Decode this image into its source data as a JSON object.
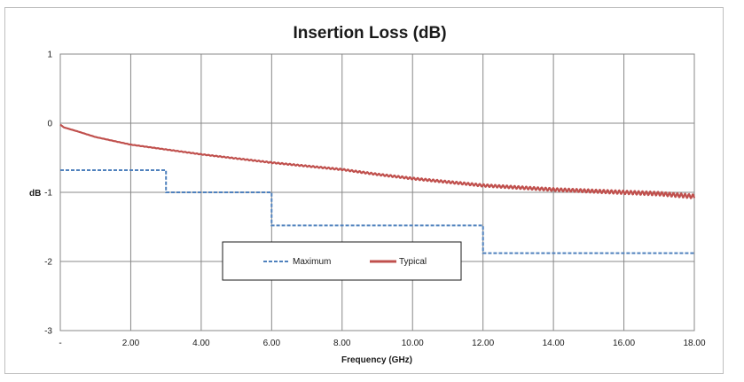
{
  "chart_data": {
    "type": "line",
    "title": "Insertion Loss (dB)",
    "xlabel": "Frequency (GHz)",
    "ylabel": "dB",
    "xlim": [
      0,
      18
    ],
    "ylim": [
      -3,
      1
    ],
    "x_ticks": [
      {
        "value": 0,
        "label": "-"
      },
      {
        "value": 2,
        "label": "2.00"
      },
      {
        "value": 4,
        "label": "4.00"
      },
      {
        "value": 6,
        "label": "6.00"
      },
      {
        "value": 8,
        "label": "8.00"
      },
      {
        "value": 10,
        "label": "10.00"
      },
      {
        "value": 12,
        "label": "12.00"
      },
      {
        "value": 14,
        "label": "14.00"
      },
      {
        "value": 16,
        "label": "16.00"
      },
      {
        "value": 18,
        "label": "18.00"
      }
    ],
    "y_ticks": [
      {
        "value": 1,
        "label": "1"
      },
      {
        "value": 0,
        "label": "0"
      },
      {
        "value": -1,
        "label": "-1"
      },
      {
        "value": -2,
        "label": "-2"
      },
      {
        "value": -3,
        "label": "-3"
      }
    ],
    "grid": true,
    "legend_position": "bottom-center",
    "series": [
      {
        "name": "Maximum",
        "color": "#4f81bd",
        "style": "dashed",
        "step": true,
        "x": [
          0,
          3,
          3,
          6,
          6,
          12,
          12,
          18
        ],
        "y": [
          -0.68,
          -0.68,
          -1.0,
          -1.0,
          -1.48,
          -1.48,
          -1.88,
          -1.88
        ]
      },
      {
        "name": "Typical",
        "color": "#c0504d",
        "style": "solid",
        "x": [
          0,
          0.1,
          0.5,
          1,
          2,
          3,
          4,
          5,
          6,
          7,
          8,
          9,
          10,
          11,
          12,
          13,
          14,
          15,
          16,
          17,
          18
        ],
        "y": [
          -0.02,
          -0.06,
          -0.12,
          -0.2,
          -0.31,
          -0.38,
          -0.45,
          -0.51,
          -0.57,
          -0.62,
          -0.67,
          -0.74,
          -0.8,
          -0.85,
          -0.9,
          -0.93,
          -0.96,
          -0.98,
          -1.0,
          -1.02,
          -1.06
        ]
      }
    ]
  }
}
